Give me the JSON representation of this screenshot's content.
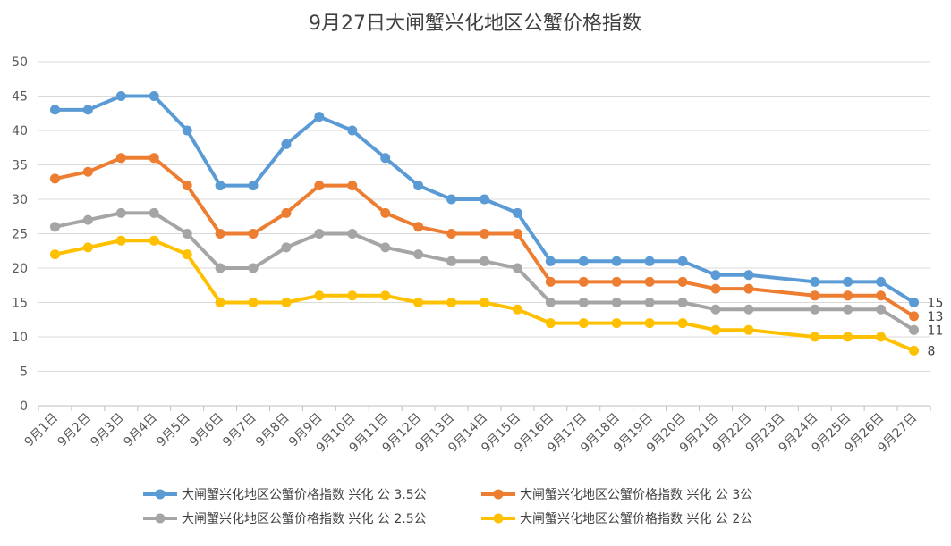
{
  "chart_data": {
    "type": "line",
    "title": "9月27日大闸蟹兴化地区公蟹价格指数",
    "xlabel": "",
    "ylabel": "",
    "ylim": [
      0,
      50
    ],
    "yticks": [
      "0",
      "5",
      "10",
      "15",
      "20",
      "25",
      "30",
      "35",
      "40",
      "45",
      "50"
    ],
    "grid": true,
    "legend_position": "bottom",
    "categories": [
      "9月1日",
      "9月2日",
      "9月3日",
      "9月4日",
      "9月5日",
      "9月6日",
      "9月7日",
      "9月8日",
      "9月9日",
      "9月10日",
      "9月11日",
      "9月12日",
      "9月13日",
      "9月14日",
      "9月15日",
      "9月16日",
      "9月17日",
      "9月18日",
      "9月19日",
      "9月20日",
      "9月21日",
      "9月22日",
      "9月23日",
      "9月24日",
      "9月25日",
      "9月26日",
      "9月27日"
    ],
    "series": [
      {
        "name": "大闸蟹兴化地区公蟹价格指数 兴化 公 3.5公",
        "color": "#5B9BD5",
        "values": [
          43,
          43,
          45,
          45,
          40,
          32,
          32,
          38,
          42,
          40,
          36,
          32,
          30,
          30,
          28,
          21,
          21,
          21,
          21,
          21,
          19,
          19,
          null,
          18,
          18,
          18,
          15
        ],
        "end_label": "15"
      },
      {
        "name": "大闸蟹兴化地区公蟹价格指数 兴化 公 3公",
        "color": "#ED7D31",
        "values": [
          33,
          34,
          36,
          36,
          32,
          25,
          25,
          28,
          32,
          32,
          28,
          26,
          25,
          25,
          25,
          18,
          18,
          18,
          18,
          18,
          17,
          17,
          null,
          16,
          16,
          16,
          13
        ],
        "end_label": "13"
      },
      {
        "name": "大闸蟹兴化地区公蟹价格指数 兴化 公 2.5公",
        "color": "#A5A5A5",
        "values": [
          26,
          27,
          28,
          28,
          25,
          20,
          20,
          23,
          25,
          25,
          23,
          22,
          21,
          21,
          20,
          15,
          15,
          15,
          15,
          15,
          14,
          14,
          null,
          14,
          14,
          14,
          11
        ],
        "end_label": "11"
      },
      {
        "name": "大闸蟹兴化地区公蟹价格指数 兴化 公 2公",
        "color": "#FFC000",
        "values": [
          22,
          23,
          24,
          24,
          22,
          15,
          15,
          15,
          16,
          16,
          16,
          15,
          15,
          15,
          14,
          12,
          12,
          12,
          12,
          12,
          11,
          11,
          null,
          10,
          10,
          10,
          8
        ],
        "end_label": "8"
      }
    ]
  }
}
